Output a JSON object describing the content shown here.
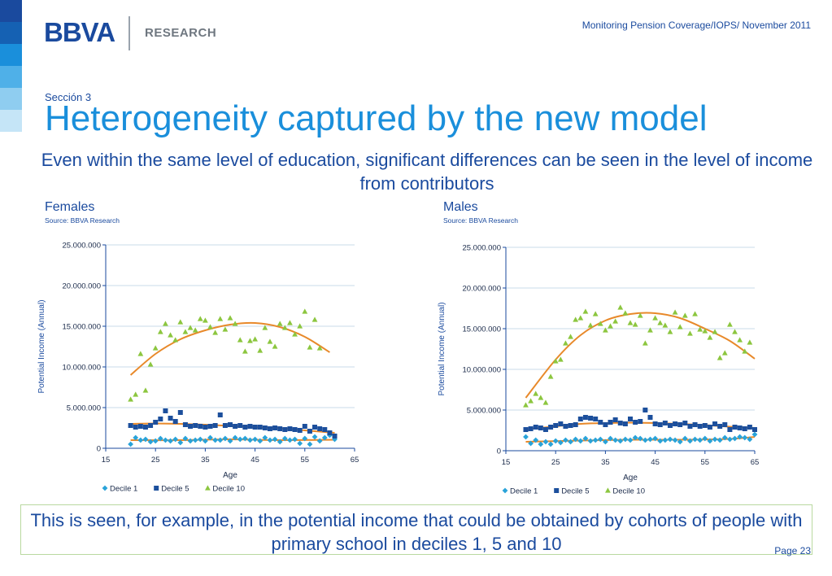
{
  "header": {
    "logo_text": "BBVA",
    "research_label": "RESEARCH",
    "report_label": "Monitoring Pension Coverage/IOPS/ November 2011"
  },
  "stripes": [
    "#1a4a9e",
    "#1561b3",
    "#1a8fdb",
    "#4fb0e8",
    "#8fcdf0",
    "#c5e5f7"
  ],
  "section": "Sección 3",
  "title": "Heterogeneity captured by the new model",
  "subtitle": "Even within the same level of education, significant differences can be seen in the level of income from contributors",
  "footer_note": "This is seen, for example, in the potential income that could be obtained by cohorts of people with primary school in deciles 1, 5 and 10",
  "page_label": "Page 23",
  "colors": {
    "decile1": "#29a3d9",
    "decile5": "#1c4f9c",
    "decile10": "#8cc63f",
    "trend": "#e8892a",
    "grid": "#c8dbe9",
    "axis": "#1a4a9e"
  },
  "chart_data": [
    {
      "type": "scatter",
      "panel_title": "Females",
      "source": "Source: BBVA Research",
      "xlabel": "Age",
      "ylabel": "Potential Income (Annual)",
      "xlim": [
        15,
        65
      ],
      "ylim": [
        0,
        25000000
      ],
      "xticks": [
        "15",
        "25",
        "35",
        "45",
        "55",
        "65"
      ],
      "yticks": [
        "0",
        "5.000.000",
        "10.000.000",
        "15.000.000",
        "20.000.000",
        "25.000.000"
      ],
      "grid": true,
      "legend_position": "bottom",
      "series": [
        {
          "name": "Decile 1",
          "marker": "diamond",
          "x": [
            20,
            21,
            22,
            23,
            24,
            25,
            26,
            27,
            28,
            29,
            30,
            31,
            32,
            33,
            34,
            35,
            36,
            37,
            38,
            39,
            40,
            41,
            42,
            43,
            44,
            45,
            46,
            47,
            48,
            49,
            50,
            51,
            52,
            53,
            54,
            55,
            56,
            57,
            58,
            59,
            60,
            61
          ],
          "y": [
            500000,
            1300000,
            1000000,
            1100000,
            800000,
            900000,
            1200000,
            1000000,
            900000,
            1100000,
            700000,
            1200000,
            900000,
            1000000,
            1100000,
            900000,
            1300000,
            1000000,
            1000000,
            1200000,
            900000,
            1300000,
            1100000,
            1200000,
            1000000,
            1100000,
            900000,
            1300000,
            1000000,
            1100000,
            800000,
            1200000,
            1000000,
            1100000,
            600000,
            1200000,
            500000,
            1400000,
            900000,
            1300000,
            1600000,
            1100000
          ]
        },
        {
          "name": "Decile 5",
          "marker": "square",
          "x": [
            20,
            21,
            22,
            23,
            24,
            25,
            26,
            27,
            28,
            29,
            30,
            31,
            32,
            33,
            34,
            35,
            36,
            37,
            38,
            39,
            40,
            41,
            42,
            43,
            44,
            45,
            46,
            47,
            48,
            49,
            50,
            51,
            52,
            53,
            54,
            55,
            56,
            57,
            58,
            59,
            60,
            61
          ],
          "y": [
            2800000,
            2600000,
            2700000,
            2600000,
            2800000,
            3200000,
            3600000,
            4600000,
            3700000,
            3300000,
            4400000,
            2900000,
            2700000,
            2800000,
            2700000,
            2600000,
            2700000,
            2800000,
            4100000,
            2800000,
            2900000,
            2700000,
            2800000,
            2600000,
            2700000,
            2600000,
            2600000,
            2500000,
            2400000,
            2500000,
            2400000,
            2300000,
            2400000,
            2300000,
            2200000,
            2700000,
            2100000,
            2600000,
            2400000,
            2300000,
            1900000,
            1500000
          ]
        },
        {
          "name": "Decile 10",
          "marker": "triangle",
          "x": [
            20,
            21,
            22,
            23,
            24,
            25,
            26,
            27,
            28,
            29,
            30,
            31,
            32,
            33,
            34,
            35,
            36,
            37,
            38,
            39,
            40,
            41,
            42,
            43,
            44,
            45,
            46,
            47,
            48,
            49,
            50,
            51,
            52,
            53,
            54,
            55,
            56,
            57,
            58
          ],
          "y": [
            6000000,
            6600000,
            11600000,
            7100000,
            10300000,
            12300000,
            14300000,
            15300000,
            13900000,
            13300000,
            15500000,
            14300000,
            14800000,
            14500000,
            15900000,
            15700000,
            14900000,
            14200000,
            15900000,
            14600000,
            16000000,
            15300000,
            13300000,
            11900000,
            13200000,
            13400000,
            12000000,
            14800000,
            13100000,
            12500000,
            15300000,
            14800000,
            15400000,
            14000000,
            15000000,
            16800000,
            12400000,
            15800000,
            12300000
          ]
        }
      ],
      "trend_lines": [
        {
          "series": "Decile 1",
          "x": [
            20,
            30,
            40,
            50,
            61
          ],
          "y": [
            1000000,
            1000000,
            1100000,
            1000000,
            1050000
          ]
        },
        {
          "series": "Decile 5",
          "x": [
            20,
            25,
            30,
            35,
            40,
            45,
            50,
            55,
            61
          ],
          "y": [
            3000000,
            3050000,
            3000000,
            2900000,
            2750000,
            2600000,
            2450000,
            2200000,
            1900000
          ]
        },
        {
          "series": "Decile 10",
          "x": [
            20,
            25,
            30,
            35,
            40,
            45,
            50,
            55,
            60
          ],
          "y": [
            9000000,
            11600000,
            13400000,
            14500000,
            15200000,
            15400000,
            14900000,
            13700000,
            11800000
          ]
        }
      ]
    },
    {
      "type": "scatter",
      "panel_title": "Males",
      "source": "Source: BBVA Research",
      "xlabel": "Age",
      "ylabel": "Potential Income (Annual)",
      "xlim": [
        15,
        65
      ],
      "ylim": [
        0,
        25000000
      ],
      "xticks": [
        "15",
        "25",
        "35",
        "45",
        "55",
        "65"
      ],
      "yticks": [
        "0",
        "5.000.000",
        "10.000.000",
        "15.000.000",
        "20.000.000",
        "25.000.000"
      ],
      "grid": true,
      "legend_position": "bottom",
      "series": [
        {
          "name": "Decile 1",
          "marker": "diamond",
          "x": [
            19,
            20,
            21,
            22,
            23,
            24,
            25,
            26,
            27,
            28,
            29,
            30,
            31,
            32,
            33,
            34,
            35,
            36,
            37,
            38,
            39,
            40,
            41,
            42,
            43,
            44,
            45,
            46,
            47,
            48,
            49,
            50,
            51,
            52,
            53,
            54,
            55,
            56,
            57,
            58,
            59,
            60,
            61,
            62,
            63,
            64,
            65
          ],
          "y": [
            1700000,
            900000,
            1300000,
            800000,
            1100000,
            800000,
            1200000,
            1000000,
            1300000,
            1100000,
            1400000,
            1200000,
            1500000,
            1200000,
            1300000,
            1400000,
            1100000,
            1500000,
            1300000,
            1200000,
            1400000,
            1300000,
            1600000,
            1500000,
            1300000,
            1400000,
            1500000,
            1200000,
            1300000,
            1400000,
            1300000,
            1100000,
            1500000,
            1200000,
            1400000,
            1300000,
            1500000,
            1200000,
            1400000,
            1300000,
            1600000,
            1400000,
            1500000,
            1700000,
            1600000,
            1400000,
            2000000
          ]
        },
        {
          "name": "Decile 5",
          "marker": "square",
          "x": [
            19,
            20,
            21,
            22,
            23,
            24,
            25,
            26,
            27,
            28,
            29,
            30,
            31,
            32,
            33,
            34,
            35,
            36,
            37,
            38,
            39,
            40,
            41,
            42,
            43,
            44,
            45,
            46,
            47,
            48,
            49,
            50,
            51,
            52,
            53,
            54,
            55,
            56,
            57,
            58,
            59,
            60,
            61,
            62,
            63,
            64,
            65
          ],
          "y": [
            2600000,
            2700000,
            2900000,
            2800000,
            2600000,
            2900000,
            3100000,
            3300000,
            3000000,
            3100000,
            3200000,
            3900000,
            4100000,
            4000000,
            3900000,
            3500000,
            3200000,
            3500000,
            3800000,
            3400000,
            3300000,
            3900000,
            3500000,
            3600000,
            5000000,
            4100000,
            3300000,
            3200000,
            3400000,
            3100000,
            3300000,
            3200000,
            3400000,
            3000000,
            3200000,
            3000000,
            3100000,
            2900000,
            3300000,
            3000000,
            3200000,
            2600000,
            2900000,
            2800000,
            2700000,
            2900000,
            2600000
          ]
        },
        {
          "name": "Decile 10",
          "marker": "triangle",
          "x": [
            19,
            20,
            21,
            22,
            23,
            24,
            25,
            26,
            27,
            28,
            29,
            30,
            31,
            32,
            33,
            34,
            35,
            36,
            37,
            38,
            39,
            40,
            41,
            42,
            43,
            44,
            45,
            46,
            47,
            48,
            49,
            50,
            51,
            52,
            53,
            54,
            55,
            56,
            57,
            58,
            59,
            60,
            61,
            62,
            63,
            64
          ],
          "y": [
            5600000,
            6100000,
            7000000,
            6500000,
            5900000,
            9100000,
            11000000,
            11200000,
            13200000,
            14000000,
            16100000,
            16300000,
            17100000,
            15400000,
            16800000,
            15600000,
            14800000,
            15300000,
            15900000,
            17600000,
            16900000,
            15700000,
            15500000,
            16600000,
            13200000,
            14800000,
            16300000,
            15700000,
            15400000,
            14600000,
            17000000,
            15200000,
            16600000,
            14400000,
            16800000,
            14900000,
            14700000,
            13900000,
            14600000,
            11400000,
            12000000,
            15500000,
            14600000,
            13600000,
            12200000,
            13300000
          ]
        }
      ],
      "trend_lines": [
        {
          "series": "Decile 1",
          "x": [
            19,
            30,
            40,
            50,
            60,
            65
          ],
          "y": [
            1100000,
            1250000,
            1350000,
            1350000,
            1450000,
            1700000
          ]
        },
        {
          "series": "Decile 5",
          "x": [
            19,
            25,
            30,
            35,
            40,
            45,
            50,
            55,
            60,
            65
          ],
          "y": [
            2600000,
            3000000,
            3300000,
            3400000,
            3450000,
            3400000,
            3300000,
            3150000,
            2950000,
            2800000
          ]
        },
        {
          "series": "Decile 10",
          "x": [
            19,
            25,
            30,
            35,
            40,
            45,
            50,
            55,
            60,
            65
          ],
          "y": [
            6500000,
            11200000,
            14200000,
            16000000,
            16800000,
            16900000,
            16300000,
            15000000,
            13500000,
            11300000
          ]
        }
      ]
    }
  ]
}
